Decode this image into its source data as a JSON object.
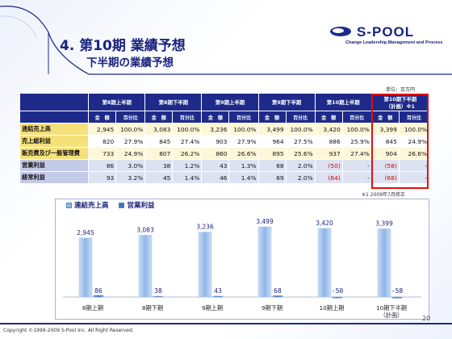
{
  "slide": {
    "title": "4. 第10期 業績予想",
    "subtitle": "下半期の業績予想",
    "logo_name": "S-POOL",
    "logo_tagline": "Change Leadership,Management and Process",
    "unit": "単位：百万円",
    "note": "※1 2009年7月修正",
    "page_number": "20",
    "copyright": "Copyright ©1999-2009 S-Pool Inc. All Right Reserved."
  },
  "table": {
    "periods": [
      "第8期上半期",
      "第8期下半期",
      "第9期上半期",
      "第9期下半期",
      "第10期上半期"
    ],
    "forecast_period_line1": "第10期下半期",
    "forecast_period_line2": "（計画）※1",
    "amount_label": "金　額",
    "ratio_label": "百分比",
    "rows": [
      {
        "label": "連結売上高",
        "cells": [
          "2,945",
          "100.0%",
          "3,083",
          "100.0%",
          "3,236",
          "100.0%",
          "3,499",
          "100.0%",
          "3,420",
          "100.0%",
          "3,399",
          "100.0%"
        ]
      },
      {
        "label": "売上総利益",
        "cells": [
          "820",
          "27.9%",
          "845",
          "27.4%",
          "903",
          "27.9%",
          "964",
          "27.5%",
          "886",
          "25.9%",
          "845",
          "24.9%"
        ]
      },
      {
        "label": "販売費及び一般管理費",
        "cells": [
          "733",
          "24.9%",
          "807",
          "26.2%",
          "860",
          "26.6%",
          "895",
          "25.6%",
          "937",
          "27.4%",
          "904",
          "26.6%"
        ]
      },
      {
        "label": "営業利益",
        "cells": [
          "86",
          "3.0%",
          "38",
          "1.2%",
          "43",
          "1.3%",
          "68",
          "2.0%",
          "(50)",
          "-",
          "(58)",
          "-"
        ]
      },
      {
        "label": "経常利益",
        "cells": [
          "93",
          "3.2%",
          "45",
          "1.4%",
          "46",
          "1.4%",
          "69",
          "2.0%",
          "(64)",
          "-",
          "(68)",
          "-"
        ]
      }
    ]
  },
  "colors": {
    "accent": "#1e2a8a",
    "sales_bar": "#8fb6e8",
    "op_bar": "#3d74c8",
    "negative": "#d00000"
  },
  "chart_data": {
    "type": "bar",
    "categories": [
      "8期上期",
      "8期下期",
      "9期上期",
      "9期下期",
      "10期上期",
      "10期下半期\n（計画）"
    ],
    "series": [
      {
        "name": "連結売上高",
        "values": [
          2945,
          3083,
          3236,
          3499,
          3420,
          3399
        ],
        "labels": [
          "2,945",
          "3,083",
          "3,236",
          "3,499",
          "3,420",
          "3,399"
        ]
      },
      {
        "name": "営業利益",
        "values": [
          86,
          38,
          43,
          68,
          -50,
          -58
        ],
        "labels": [
          "86",
          "38",
          "43",
          "68",
          "-50",
          "-58"
        ]
      }
    ],
    "ylim": [
      -200,
      3700
    ],
    "grid": false,
    "legend": "top-left"
  }
}
